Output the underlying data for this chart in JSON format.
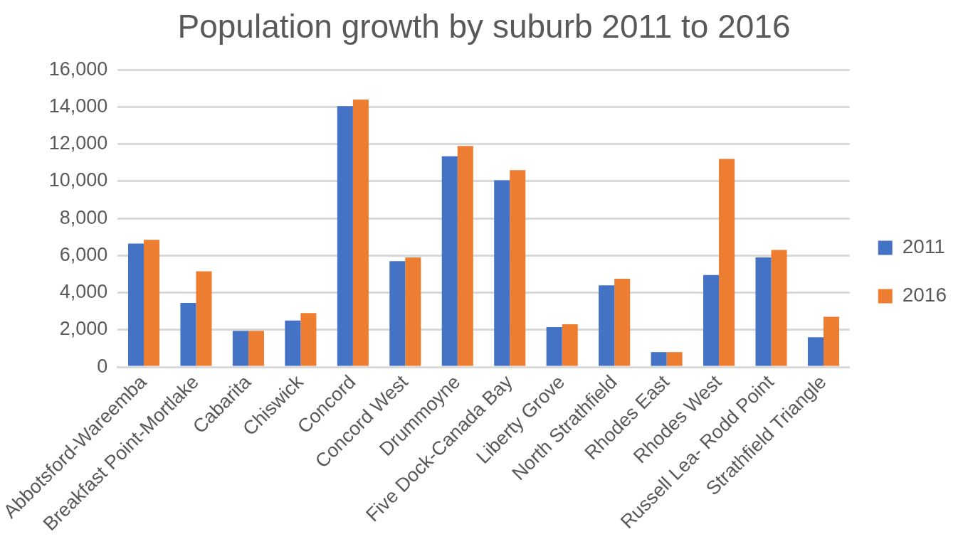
{
  "chart_data": {
    "type": "bar",
    "title": "Population growth by suburb 2011 to 2016",
    "categories": [
      "Abbotsford-Wareemba",
      "Breakfast Point-Mortlake",
      "Cabarita",
      "Chiswick",
      "Concord",
      "Concord West",
      "Drummoyne",
      "Five Dock-Canada Bay",
      "Liberty Grove",
      "North Strathfield",
      "Rhodes East",
      "Rhodes West",
      "Russell Lea- Rodd Point",
      "Strathfield Triangle"
    ],
    "series": [
      {
        "name": "2011",
        "color": "#4472c4",
        "values": [
          6650,
          3450,
          1950,
          2500,
          14050,
          5700,
          11350,
          10050,
          2150,
          4400,
          800,
          4950,
          5900,
          1600
        ]
      },
      {
        "name": "2016",
        "color": "#ed7d31",
        "values": [
          6850,
          5150,
          1950,
          2900,
          14400,
          5900,
          11900,
          10600,
          2300,
          4750,
          800,
          11200,
          6300,
          2700
        ]
      }
    ],
    "ylim": [
      0,
      16000
    ],
    "yticks": [
      0,
      {
        "value": 2000,
        "label": "2,000"
      },
      {
        "value": 4000,
        "label": "4,000"
      },
      {
        "value": 6000,
        "label": "6,000"
      },
      {
        "value": 8000,
        "label": "8,000"
      },
      {
        "value": 10000,
        "label": "10,000"
      },
      {
        "value": 12000,
        "label": "12,000"
      },
      {
        "value": 14000,
        "label": "14,000"
      },
      {
        "value": 16000,
        "label": "16,000"
      }
    ],
    "grid": "y",
    "legend": "right"
  }
}
